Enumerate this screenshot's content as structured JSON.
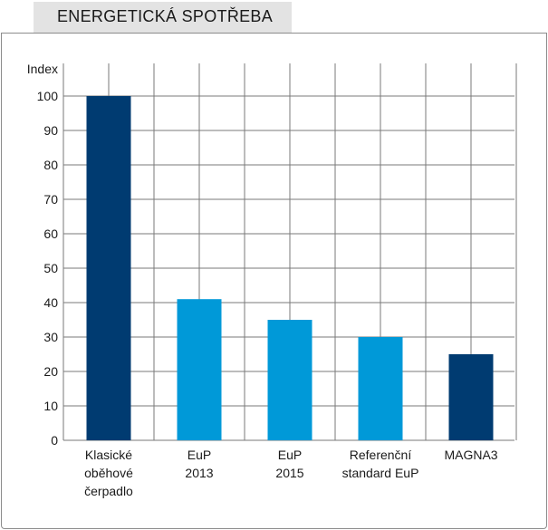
{
  "header": {
    "title": "ENERGETICKÁ SPOTŘEBA"
  },
  "colors": {
    "dark": "#003b71",
    "light": "#0099d8",
    "grid": "#7a7a7a",
    "frame": "#8c8c8c"
  },
  "chart_data": {
    "type": "bar",
    "title": "ENERGETICKÁ SPOTŘEBA",
    "ylabel": "Index",
    "xlabel": "",
    "ylim": [
      0,
      100
    ],
    "yticks": [
      0,
      10,
      20,
      30,
      40,
      50,
      60,
      70,
      80,
      90,
      100
    ],
    "grid": true,
    "categories": [
      [
        "Klasické",
        "oběhové",
        "čerpadlo"
      ],
      [
        "EuP",
        "2013"
      ],
      [
        "EuP",
        "2015"
      ],
      [
        "Referenční",
        "standard EuP"
      ],
      [
        "MAGNA3"
      ]
    ],
    "values": [
      100,
      41,
      35,
      30,
      25
    ],
    "bar_colors": [
      "#003b71",
      "#0099d8",
      "#0099d8",
      "#0099d8",
      "#003b71"
    ]
  }
}
